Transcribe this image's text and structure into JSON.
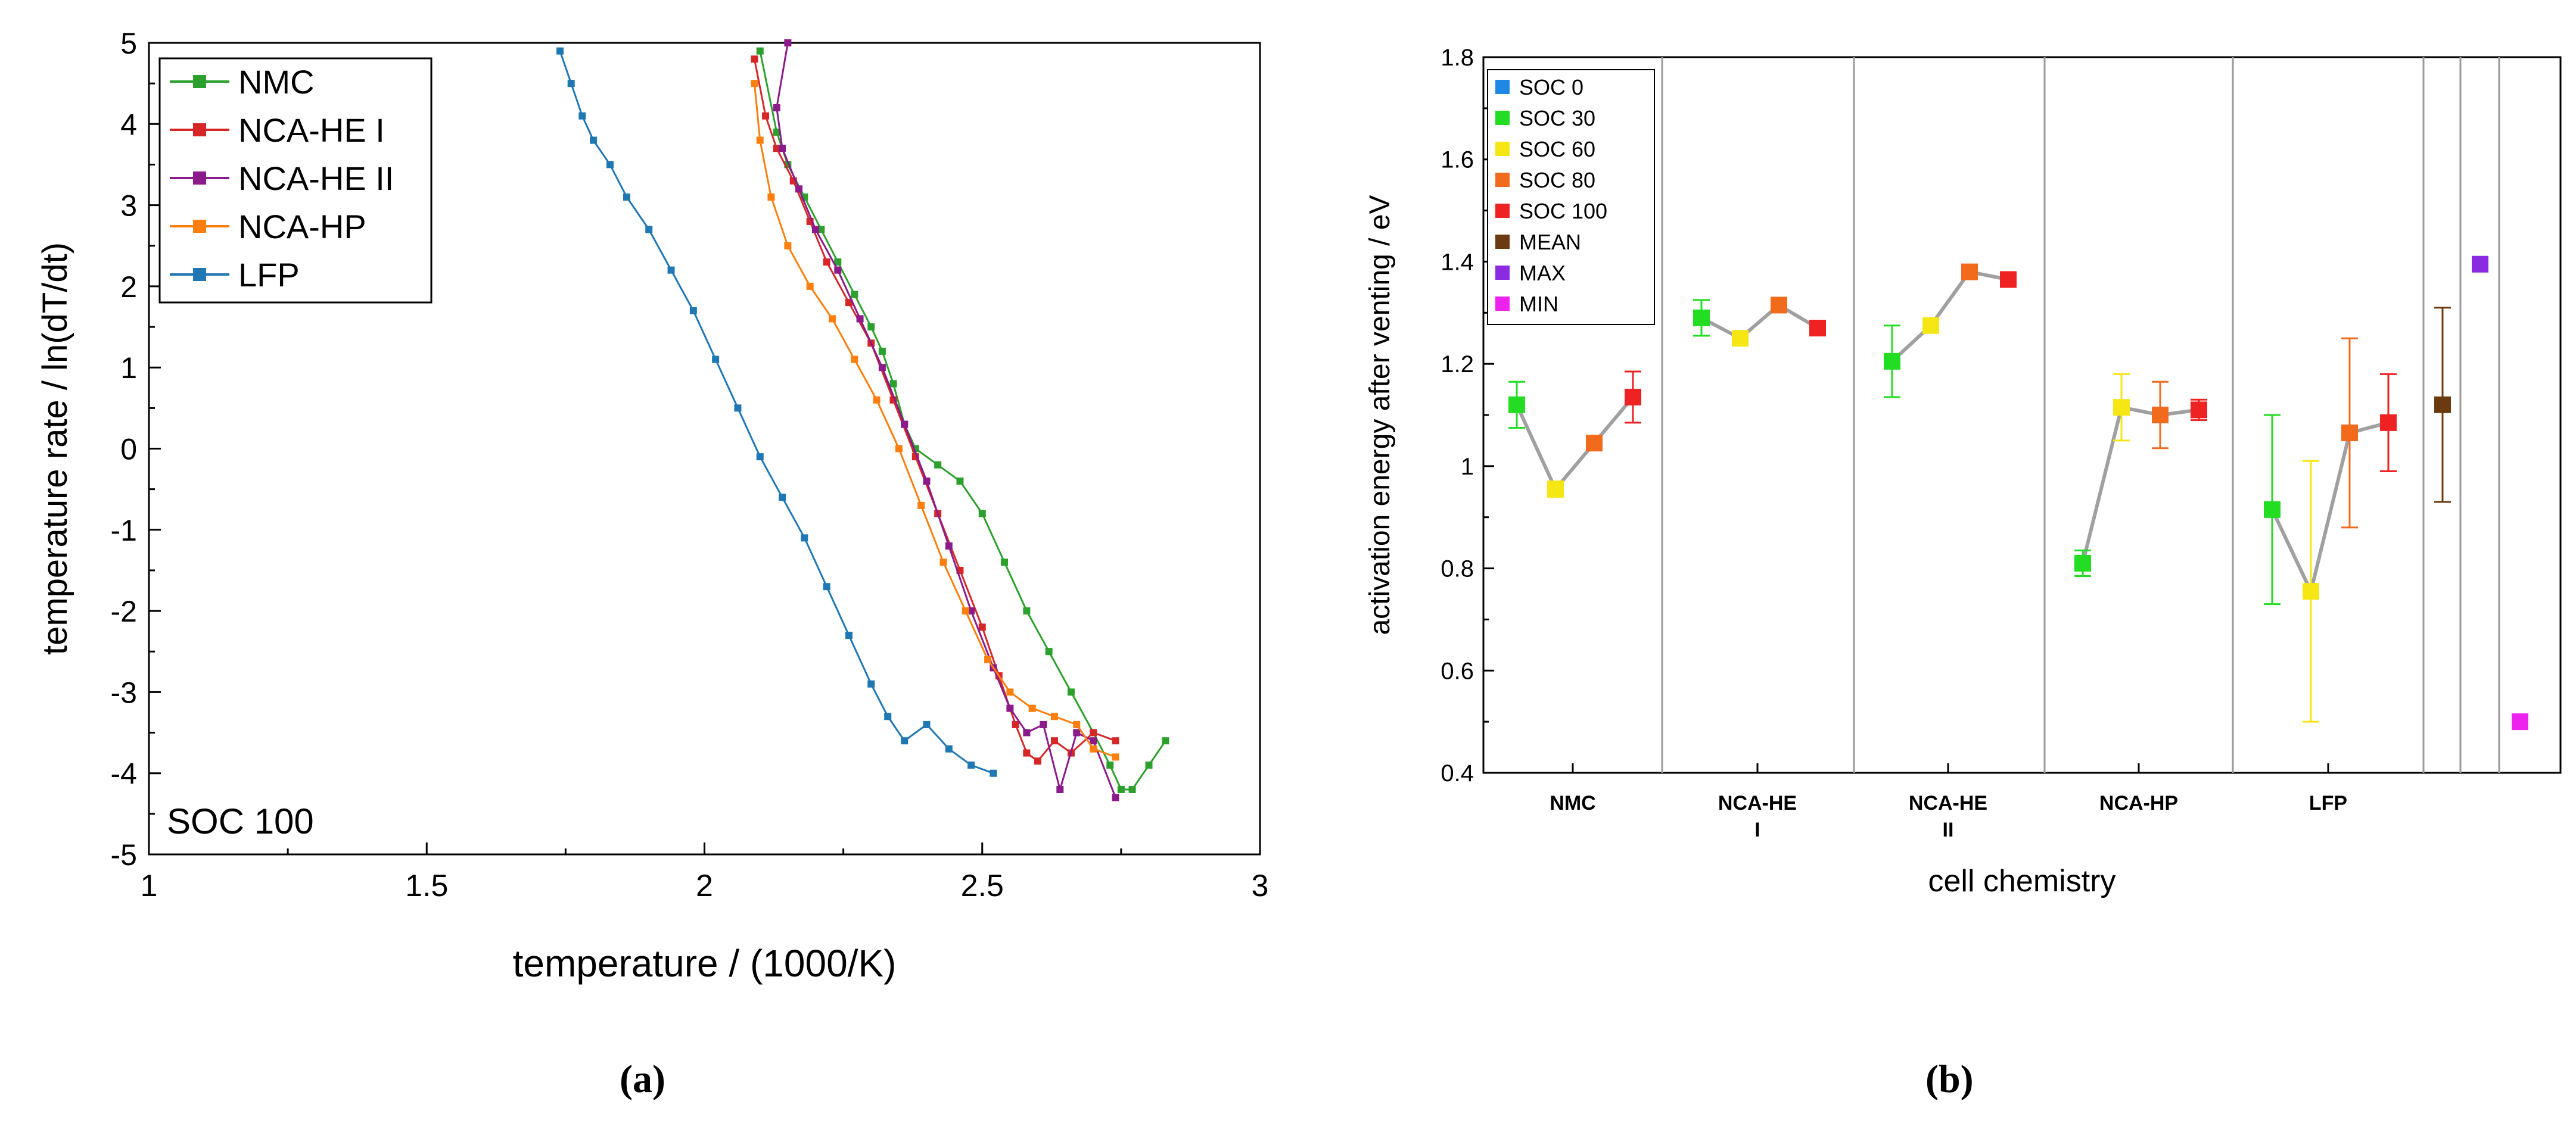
{
  "chart_data": [
    {
      "panel": "(a)",
      "type": "scatter",
      "title": "",
      "xlabel": "temperature / (1000/K)",
      "ylabel": "temperature rate / ln(dT/dt)",
      "xlim": [
        1,
        3
      ],
      "ylim": [
        -5,
        5
      ],
      "xticks": [
        1,
        1.5,
        2,
        2.5,
        3
      ],
      "xtick_labels": [
        "1",
        "1.5",
        "2",
        "2.5",
        "3"
      ],
      "yticks": [
        -5,
        -4,
        -3,
        -2,
        -1,
        0,
        1,
        2,
        3,
        4,
        5
      ],
      "ytick_labels": [
        "-5",
        "-4",
        "-3",
        "-2",
        "-1",
        "0",
        "1",
        "2",
        "3",
        "4",
        "5"
      ],
      "annotation": "SOC 100",
      "legend_position": "top-left",
      "series": [
        {
          "name": "NMC",
          "color": "#2ca02c",
          "x": [
            2.1,
            2.13,
            2.15,
            2.18,
            2.21,
            2.24,
            2.27,
            2.3,
            2.32,
            2.34,
            2.36,
            2.38,
            2.42,
            2.46,
            2.5,
            2.54,
            2.58,
            2.62,
            2.66,
            2.7,
            2.73,
            2.75,
            2.77,
            2.8,
            2.83
          ],
          "y": [
            4.9,
            3.9,
            3.5,
            3.1,
            2.7,
            2.3,
            1.9,
            1.5,
            1.2,
            0.8,
            0.3,
            0.0,
            -0.2,
            -0.4,
            -0.8,
            -1.4,
            -2.0,
            -2.5,
            -3.0,
            -3.5,
            -3.9,
            -4.2,
            -4.2,
            -3.9,
            -3.6
          ]
        },
        {
          "name": "NCA-HE I",
          "color": "#d62728",
          "x": [
            2.09,
            2.11,
            2.13,
            2.16,
            2.19,
            2.22,
            2.26,
            2.3,
            2.34,
            2.38,
            2.42,
            2.46,
            2.5,
            2.53,
            2.56,
            2.58,
            2.6,
            2.63,
            2.66,
            2.7,
            2.74
          ],
          "y": [
            4.8,
            4.1,
            3.7,
            3.3,
            2.8,
            2.3,
            1.8,
            1.3,
            0.6,
            -0.1,
            -0.8,
            -1.5,
            -2.2,
            -2.8,
            -3.4,
            -3.75,
            -3.85,
            -3.6,
            -3.75,
            -3.5,
            -3.6
          ]
        },
        {
          "name": "NCA-HE II",
          "color": "#8b1a8b",
          "x": [
            2.15,
            2.13,
            2.14,
            2.17,
            2.2,
            2.24,
            2.28,
            2.32,
            2.36,
            2.4,
            2.44,
            2.48,
            2.52,
            2.55,
            2.58,
            2.61,
            2.64,
            2.67,
            2.7,
            2.74
          ],
          "y": [
            5.0,
            4.2,
            3.7,
            3.2,
            2.7,
            2.2,
            1.6,
            1.0,
            0.3,
            -0.4,
            -1.2,
            -2.0,
            -2.7,
            -3.2,
            -3.5,
            -3.4,
            -4.2,
            -3.5,
            -3.6,
            -4.3
          ]
        },
        {
          "name": "NCA-HP",
          "color": "#ff7f0e",
          "x": [
            2.09,
            2.1,
            2.12,
            2.15,
            2.19,
            2.23,
            2.27,
            2.31,
            2.35,
            2.39,
            2.43,
            2.47,
            2.51,
            2.55,
            2.59,
            2.63,
            2.67,
            2.7,
            2.74
          ],
          "y": [
            4.5,
            3.8,
            3.1,
            2.5,
            2.0,
            1.6,
            1.1,
            0.6,
            0.0,
            -0.7,
            -1.4,
            -2.0,
            -2.6,
            -3.0,
            -3.2,
            -3.3,
            -3.4,
            -3.7,
            -3.8
          ]
        },
        {
          "name": "LFP",
          "color": "#1f77b4",
          "x": [
            1.74,
            1.76,
            1.78,
            1.8,
            1.83,
            1.86,
            1.9,
            1.94,
            1.98,
            2.02,
            2.06,
            2.1,
            2.14,
            2.18,
            2.22,
            2.26,
            2.3,
            2.33,
            2.36,
            2.4,
            2.44,
            2.48,
            2.52
          ],
          "y": [
            4.9,
            4.5,
            4.1,
            3.8,
            3.5,
            3.1,
            2.7,
            2.2,
            1.7,
            1.1,
            0.5,
            -0.1,
            -0.6,
            -1.1,
            -1.7,
            -2.3,
            -2.9,
            -3.3,
            -3.6,
            -3.4,
            -3.7,
            -3.9,
            -4.0
          ]
        }
      ]
    },
    {
      "panel": "(b)",
      "type": "scatter",
      "title": "",
      "xlabel": "cell chemistry",
      "ylabel": "activation energy after venting / eV",
      "ylim": [
        0.4,
        1.8
      ],
      "yticks": [
        0.4,
        0.6,
        0.8,
        1.0,
        1.2,
        1.4,
        1.6,
        1.8
      ],
      "ytick_labels": [
        "0.4",
        "0.6",
        "0.8",
        "1",
        "1.2",
        "1.4",
        "1.6",
        "1.8"
      ],
      "categories": [
        "NMC",
        "NCA-HE I",
        "NCA-HE II",
        "NCA-HP",
        "LFP"
      ],
      "category_label_lines": [
        [
          "NMC"
        ],
        [
          "NCA-HE",
          "I"
        ],
        [
          "NCA-HE",
          "II"
        ],
        [
          "NCA-HP"
        ],
        [
          "LFP"
        ]
      ],
      "legend_position": "top-left",
      "legend": [
        {
          "name": "SOC 0",
          "color": "#1e88e5"
        },
        {
          "name": "SOC 30",
          "color": "#22dd22"
        },
        {
          "name": "SOC 60",
          "color": "#f5e614"
        },
        {
          "name": "SOC 80",
          "color": "#f26b1d"
        },
        {
          "name": "SOC 100",
          "color": "#ee2222"
        },
        {
          "name": "MEAN",
          "color": "#6b3a10"
        },
        {
          "name": "MAX",
          "color": "#8a2be2"
        },
        {
          "name": "MIN",
          "color": "#ee22ee"
        }
      ],
      "groups": [
        {
          "category": "NMC",
          "points": [
            {
              "soc": "SOC 30",
              "value": 1.12,
              "err": 0.045
            },
            {
              "soc": "SOC 60",
              "value": 0.955,
              "err": 0.015
            },
            {
              "soc": "SOC 80",
              "value": 1.045,
              "err": 0.0
            },
            {
              "soc": "SOC 100",
              "value": 1.135,
              "err": 0.05
            }
          ]
        },
        {
          "category": "NCA-HE I",
          "points": [
            {
              "soc": "SOC 30",
              "value": 1.29,
              "err": 0.035
            },
            {
              "soc": "SOC 60",
              "value": 1.25,
              "err": 0.0
            },
            {
              "soc": "SOC 80",
              "value": 1.315,
              "err": 0.0
            },
            {
              "soc": "SOC 100",
              "value": 1.27,
              "err": 0.0
            }
          ]
        },
        {
          "category": "NCA-HE II",
          "points": [
            {
              "soc": "SOC 30",
              "value": 1.205,
              "err": 0.07
            },
            {
              "soc": "SOC 60",
              "value": 1.275,
              "err": 0.0
            },
            {
              "soc": "SOC 80",
              "value": 1.38,
              "err": 0.0
            },
            {
              "soc": "SOC 100",
              "value": 1.365,
              "err": 0.0
            }
          ]
        },
        {
          "category": "NCA-HP",
          "points": [
            {
              "soc": "SOC 30",
              "value": 0.81,
              "err": 0.025
            },
            {
              "soc": "SOC 60",
              "value": 1.115,
              "err": 0.065
            },
            {
              "soc": "SOC 80",
              "value": 1.1,
              "err": 0.065
            },
            {
              "soc": "SOC 100",
              "value": 1.11,
              "err": 0.02
            }
          ]
        },
        {
          "category": "LFP",
          "points": [
            {
              "soc": "SOC 30",
              "value": 0.915,
              "err": 0.185
            },
            {
              "soc": "SOC 60",
              "value": 0.755,
              "err": 0.255
            },
            {
              "soc": "SOC 80",
              "value": 1.065,
              "err": 0.185
            },
            {
              "soc": "SOC 100",
              "value": 1.085,
              "err": 0.095
            }
          ]
        }
      ],
      "summary": [
        {
          "name": "MEAN",
          "value": 1.12,
          "err": 0.19
        },
        {
          "name": "MAX",
          "value": 1.395,
          "err": 0.0
        },
        {
          "name": "MIN",
          "value": 0.5,
          "err": 0.0
        }
      ]
    }
  ],
  "captions": [
    "(a)",
    "(b)"
  ]
}
